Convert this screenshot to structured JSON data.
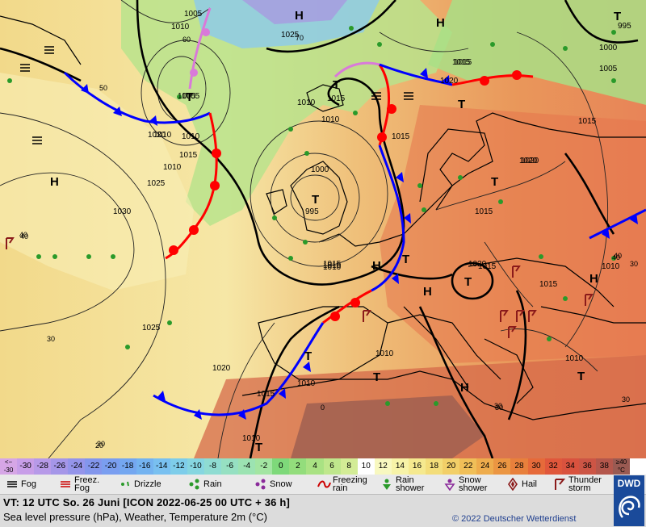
{
  "map": {
    "pressure_labels": [
      "1005",
      "1010",
      "1025",
      "1020",
      "1015",
      "1010",
      "1005",
      "1010",
      "1015",
      "1020",
      "1025",
      "1030",
      "1010",
      "1015",
      "1000",
      "995",
      "1015",
      "1020",
      "1010",
      "1010",
      "1015",
      "1020",
      "1015",
      "1020",
      "1015",
      "995",
      "1000",
      "1005",
      "1010",
      "1015",
      "1010",
      "1025",
      "1020",
      "1010",
      "1015",
      "1010",
      "1010",
      "1015",
      "1015",
      "1010",
      "1010",
      "1005"
    ],
    "pressure_systems": [
      "H",
      "H",
      "H",
      "H",
      "H",
      "H",
      "H",
      "T",
      "T",
      "T",
      "T",
      "T",
      "T",
      "T",
      "T",
      "T",
      "T",
      "T",
      "T"
    ],
    "temp_labels": [
      "60",
      "50",
      "70",
      "40",
      "40",
      "30",
      "20",
      "0",
      "30",
      "30",
      "40",
      "30",
      "30",
      "40",
      "20"
    ],
    "colors": {
      "front_cold": "#0000ff",
      "front_warm": "#ff0000",
      "front_occluded": "#d97ad9",
      "isobar": "#000000"
    }
  },
  "scale": {
    "values": [
      "<− -30",
      "-30",
      "-28",
      "-26",
      "-24",
      "-22",
      "-20",
      "-18",
      "-16",
      "-14",
      "-12",
      "-10",
      "-8",
      "-6",
      "-4",
      "-2",
      "0",
      "2",
      "4",
      "6",
      "8",
      "10",
      "12",
      "14",
      "16",
      "18",
      "20",
      "22",
      "24",
      "26",
      "28",
      "30",
      "32",
      "34",
      "36",
      "38",
      "≥40 °C"
    ],
    "colors": [
      "#d6a6e6",
      "#c89ee8",
      "#b79ae8",
      "#a596e8",
      "#9494ea",
      "#8396ec",
      "#7a9ef0",
      "#74a7f0",
      "#74b3f0",
      "#79c0f0",
      "#7ecdea",
      "#86d6e0",
      "#8fdcd2",
      "#96e0c2",
      "#9ce3b2",
      "#a3e5a2",
      "#7ed97a",
      "#93dd7c",
      "#a9e283",
      "#bfe78c",
      "#d3ec96",
      "#ffffff",
      "#f8f8c0",
      "#f7f3a8",
      "#f5e98f",
      "#f3dd7a",
      "#f2cf68",
      "#f0bf58",
      "#eeac4c",
      "#eb9642",
      "#e8803c",
      "#e66a3a",
      "#e0573b",
      "#d9523e",
      "#cc5545",
      "#b4574c",
      "#9a5a52"
    ]
  },
  "legend": {
    "fog": "Fog",
    "freezing_fog": "Freez.\nFog",
    "drizzle": "Drizzle",
    "rain": "Rain",
    "snow": "Snow",
    "freezing_rain": "Freezing\nrain",
    "rain_shower": "Rain\nshower",
    "snow_shower": "Snow\nshower",
    "hail": "Hail",
    "thunderstorm": "Thunder\nstorm"
  },
  "info": {
    "valid_time": "VT: 12 UTC So.  26 Juni [ICON 2022-06-25  00 UTC + 36 h]",
    "parameters": "Sea level pressure (hPa), Weather, Temperature 2m (°C)",
    "copyright": "© 2022 Deutscher Wetterdienst",
    "logo": "DWD"
  }
}
